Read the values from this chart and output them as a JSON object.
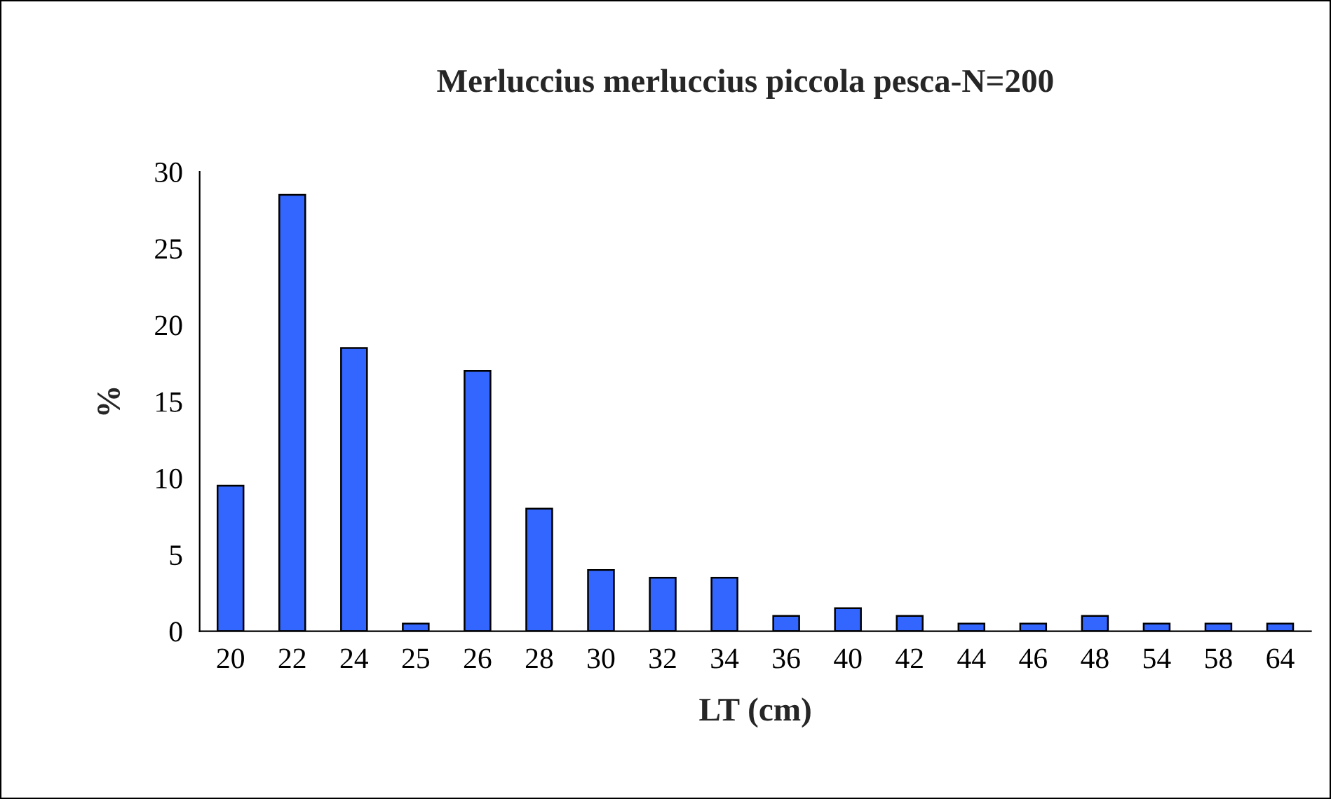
{
  "chart_data": {
    "type": "bar",
    "title": "Merluccius merluccius piccola pesca-N=200",
    "xlabel": "LT (cm)",
    "ylabel": "%",
    "categories": [
      "20",
      "22",
      "24",
      "25",
      "26",
      "28",
      "30",
      "32",
      "34",
      "36",
      "40",
      "42",
      "44",
      "46",
      "48",
      "54",
      "58",
      "64"
    ],
    "values": [
      9.5,
      28.5,
      18.5,
      0.5,
      17,
      8,
      4,
      3.5,
      3.5,
      1,
      1.5,
      1,
      0.5,
      0.5,
      1,
      0.5,
      0.5,
      0.5
    ],
    "color": "#3366ff",
    "ylim": [
      0,
      30
    ],
    "yticks": [
      0,
      5,
      10,
      15,
      20,
      25,
      30
    ],
    "grid": false,
    "legend": false
  }
}
